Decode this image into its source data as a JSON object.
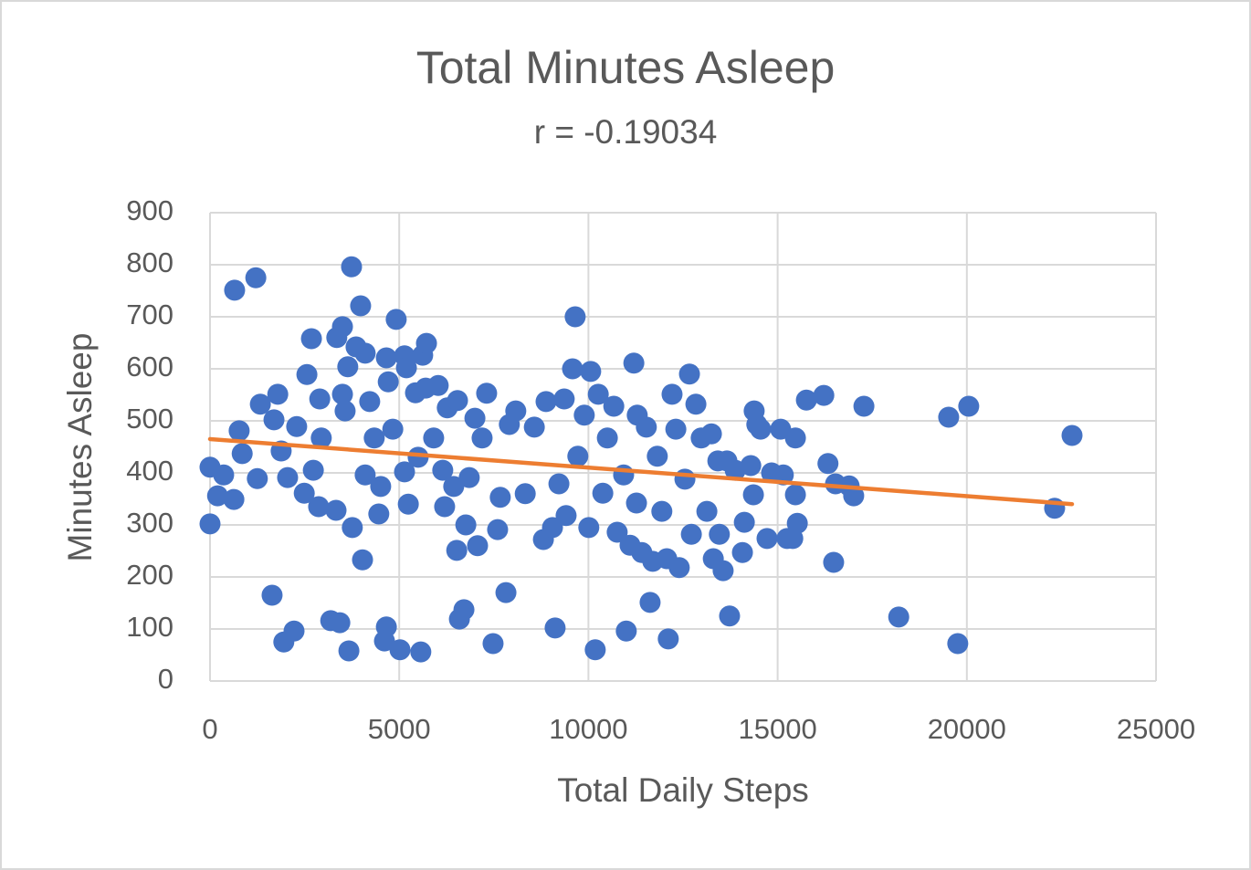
{
  "chart_data": {
    "type": "scatter",
    "title": "Total Minutes Asleep",
    "subtitle": "r = -0.19034",
    "x_label": "Total Daily Steps",
    "y_label": "Minutes Asleep",
    "xlim": [
      0,
      25000
    ],
    "xticks": [
      0,
      5000,
      10000,
      15000,
      20000,
      25000
    ],
    "ylim": [
      0,
      900
    ],
    "yticks": [
      0,
      100,
      200,
      300,
      400,
      500,
      600,
      700,
      800,
      900
    ],
    "grid": true,
    "series": [
      {
        "color": "#4472c4",
        "x": [
          0,
          0,
          200,
          360,
          650,
          630,
          770,
          850,
          1210,
          1250,
          1330,
          1640,
          1690,
          1790,
          1880,
          1950,
          2050,
          2220,
          2290,
          2490,
          2560,
          2680,
          2730,
          2870,
          2940,
          2900,
          3190,
          3330,
          3350,
          3430,
          3500,
          3500,
          3570,
          3640,
          3670,
          3740,
          3760,
          3860,
          3980,
          4030,
          4100,
          4100,
          4220,
          4340,
          4460,
          4510,
          4610,
          4660,
          4660,
          4710,
          4830,
          4920,
          5020,
          5140,
          5190,
          5140,
          5240,
          5430,
          5500,
          5570,
          5620,
          5720,
          5700,
          5910,
          6030,
          6150,
          6200,
          6270,
          6440,
          6520,
          6540,
          6590,
          6710,
          6760,
          6850,
          7000,
          7070,
          7190,
          7310,
          7480,
          7600,
          7670,
          7820,
          7910,
          8080,
          8330,
          8570,
          8810,
          8880,
          9050,
          9120,
          9220,
          9360,
          9410,
          9580,
          9650,
          9720,
          9890,
          10010,
          10060,
          10180,
          10260,
          10380,
          10500,
          10670,
          10760,
          10930,
          11000,
          11100,
          11200,
          11270,
          11290,
          11410,
          11530,
          11630,
          11700,
          11820,
          11940,
          12070,
          12110,
          12210,
          12310,
          12400,
          12550,
          12670,
          12720,
          12840,
          12980,
          13130,
          13250,
          13300,
          13420,
          13460,
          13560,
          13660,
          13730,
          13880,
          14070,
          14120,
          14290,
          14360,
          14380,
          14450,
          14550,
          14720,
          14840,
          15080,
          15150,
          15250,
          15400,
          15470,
          15470,
          15520,
          15760,
          16220,
          16330,
          16480,
          16530,
          16890,
          17010,
          17280,
          18200,
          19520,
          19760,
          20050,
          22320,
          22780
        ],
        "values": [
          302,
          411,
          356,
          396,
          751,
          349,
          481,
          437,
          775,
          389,
          532,
          165,
          502,
          551,
          442,
          75,
          391,
          96,
          489,
          361,
          589,
          658,
          405,
          335,
          467,
          542,
          116,
          328,
          660,
          112,
          681,
          551,
          519,
          604,
          58,
          796,
          295,
          642,
          721,
          233,
          630,
          396,
          537,
          467,
          321,
          374,
          77,
          104,
          621,
          575,
          484,
          695,
          60,
          625,
          602,
          402,
          340,
          554,
          430,
          56,
          626,
          649,
          563,
          467,
          568,
          405,
          335,
          525,
          374,
          251,
          539,
          119,
          137,
          300,
          391,
          505,
          260,
          467,
          553,
          72,
          291,
          353,
          170,
          493,
          519,
          360,
          488,
          272,
          537,
          295,
          102,
          379,
          542,
          318,
          600,
          700,
          432,
          511,
          295,
          595,
          60,
          551,
          361,
          467,
          528,
          286,
          396,
          96,
          261,
          611,
          342,
          511,
          247,
          488,
          151,
          230,
          432,
          326,
          235,
          81,
          551,
          484,
          218,
          388,
          590,
          282,
          532,
          467,
          326,
          475,
          235,
          423,
          282,
          212,
          423,
          125,
          405,
          247,
          305,
          414,
          358,
          519,
          493,
          484,
          274,
          400,
          484,
          396,
          274,
          274,
          467,
          358,
          303,
          540,
          549,
          418,
          228,
          379,
          375,
          356,
          528,
          123,
          507,
          72,
          528,
          332,
          472
        ]
      },
      {
        "type": "line",
        "color": "#ed7d31",
        "x": [
          0,
          22780
        ],
        "values": [
          465,
          340
        ]
      }
    ]
  }
}
